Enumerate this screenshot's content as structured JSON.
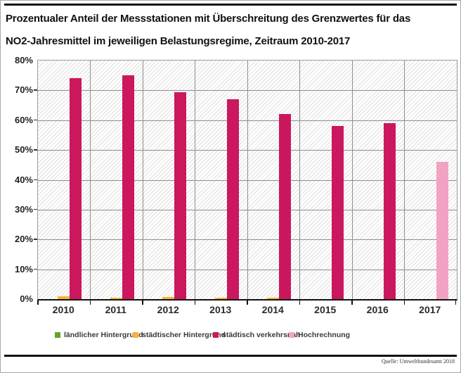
{
  "title": {
    "line1": "Prozentualer Anteil der Messstationen mit Überschreitung des Grenzwertes für das",
    "line2": "NO2-Jahresmittel im jeweiligen Belastungsregime, Zeitraum 2010-2017"
  },
  "source": "Quelle: Umweltbundesamt 2018",
  "colors": {
    "rural_green": "#63a528",
    "urban_orange": "#f9b234",
    "traffic_pink": "#cb175e",
    "projection_pink": "#f2a3c3",
    "grid": "#8f8f8f",
    "axis": "#111111"
  },
  "legend": {
    "items": [
      {
        "label": "ländlicher Hintergrund",
        "color": "#63a528"
      },
      {
        "label": "städtischer Hintergrund",
        "color": "#f9b234"
      },
      {
        "label": "städtisch verkehrsnah",
        "color": "#cb175e"
      },
      {
        "label": "Hochrechnung",
        "color": "#f2a3c3"
      }
    ]
  },
  "chart_data": {
    "type": "bar",
    "title": "Prozentualer Anteil der Messstationen mit Überschreitung des Grenzwertes für das NO2-Jahresmittel im jeweiligen Belastungsregime, Zeitraum 2010-2017",
    "categories": [
      "2010",
      "2011",
      "2012",
      "2013",
      "2014",
      "2015",
      "2016",
      "2017"
    ],
    "series": [
      {
        "name": "ländlicher Hintergrund",
        "color": "#63a528",
        "slot": 0,
        "values": [
          0,
          0,
          0,
          0,
          0,
          0,
          0,
          null
        ]
      },
      {
        "name": "städtischer Hintergrund",
        "color": "#f9b234",
        "slot": 1,
        "values": [
          1,
          0.5,
          0.8,
          0.5,
          0.5,
          0,
          0,
          null
        ]
      },
      {
        "name": "städtisch verkehrsnah",
        "color": "#cb175e",
        "slot": 2,
        "values": [
          74,
          75,
          69.5,
          67,
          62,
          58,
          59,
          null
        ]
      },
      {
        "name": "Hochrechnung",
        "color": "#f2a3c3",
        "slot": 2,
        "values": [
          null,
          null,
          null,
          null,
          null,
          null,
          null,
          46
        ]
      }
    ],
    "xlabel": "",
    "ylabel": "",
    "ylim": [
      0,
      80
    ],
    "ytick_step": 10,
    "ytick_suffix": "%",
    "grid": true,
    "hatched_background": true,
    "legend_position": "bottom"
  }
}
